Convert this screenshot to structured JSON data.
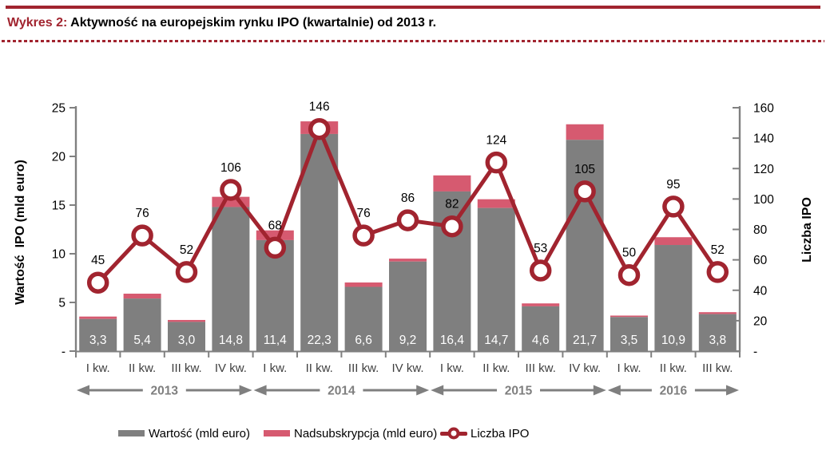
{
  "header": {
    "prefix": "Wykres 2:",
    "title": " Aktywność na europejskim rynku IPO (kwartalnie) od 2013 r."
  },
  "colors": {
    "dark_red": "#A1242F",
    "pink": "#D65A70",
    "bar_gray": "#7F7F7F",
    "axis_gray": "#808080",
    "quarter_label": "#3F3F3F",
    "year_gray": "#7F7F7F",
    "bar_label_text": "#FFFFFF",
    "count_label_text": "#000000"
  },
  "chart_data": {
    "type": "bar",
    "subtype": "stacked-bar-with-line-overlay",
    "categories": [
      "I kw.",
      "II kw.",
      "III kw.",
      "IV kw.",
      "I kw.",
      "II kw.",
      "III kw.",
      "IV kw.",
      "I kw.",
      "II kw.",
      "III kw.",
      "IV kw.",
      "I kw.",
      "II kw.",
      "III kw."
    ],
    "year_groups": [
      {
        "label": "2013",
        "quarters": 4
      },
      {
        "label": "2014",
        "quarters": 4
      },
      {
        "label": "2015",
        "quarters": 4
      },
      {
        "label": "2016",
        "quarters": 3
      }
    ],
    "series": [
      {
        "name": "Wartość (mld euro)",
        "type": "bar",
        "color": "#7F7F7F",
        "values": [
          3.3,
          5.4,
          3.0,
          14.8,
          11.4,
          22.3,
          6.6,
          9.2,
          16.4,
          14.7,
          4.6,
          21.7,
          3.5,
          10.9,
          3.8
        ],
        "labels": [
          "3,3",
          "5,4",
          "3,0",
          "14,8",
          "11,4",
          "22,3",
          "6,6",
          "9,2",
          "16,4",
          "14,7",
          "4,6",
          "21,7",
          "3,5",
          "10,9",
          "3,8"
        ]
      },
      {
        "name": "Nadsubskrypcja (mld euro)",
        "type": "bar",
        "color": "#D65A70",
        "values": [
          0.25,
          0.5,
          0.2,
          1.05,
          1.0,
          1.3,
          0.45,
          0.3,
          1.65,
          0.9,
          0.3,
          1.6,
          0.15,
          0.8,
          0.2
        ]
      },
      {
        "name": "Liczba IPO",
        "type": "line",
        "color": "#A1242F",
        "values": [
          45,
          76,
          52,
          106,
          68,
          146,
          76,
          86,
          82,
          124,
          53,
          105,
          50,
          95,
          52
        ]
      }
    ],
    "left_axis": {
      "title": "Wartość  IPO (mld euro)",
      "ticks": [
        "25",
        "20",
        "15",
        "10",
        "5",
        "-"
      ],
      "tick_values": [
        25,
        20,
        15,
        10,
        5,
        0
      ],
      "min": 0,
      "max": 25
    },
    "right_axis": {
      "title": "Liczba IPO",
      "ticks": [
        "160",
        "140",
        "120",
        "100",
        "80",
        "60",
        "40",
        "20",
        "-"
      ],
      "tick_values": [
        160,
        140,
        120,
        100,
        80,
        60,
        40,
        20,
        0
      ],
      "min": 0,
      "max": 160
    },
    "grid": false,
    "legend_position": "bottom"
  },
  "legend": {
    "items": [
      {
        "label": "Wartość (mld euro)"
      },
      {
        "label": "Nadsubskrypcja (mld euro)"
      },
      {
        "label": "Liczba IPO"
      }
    ]
  }
}
